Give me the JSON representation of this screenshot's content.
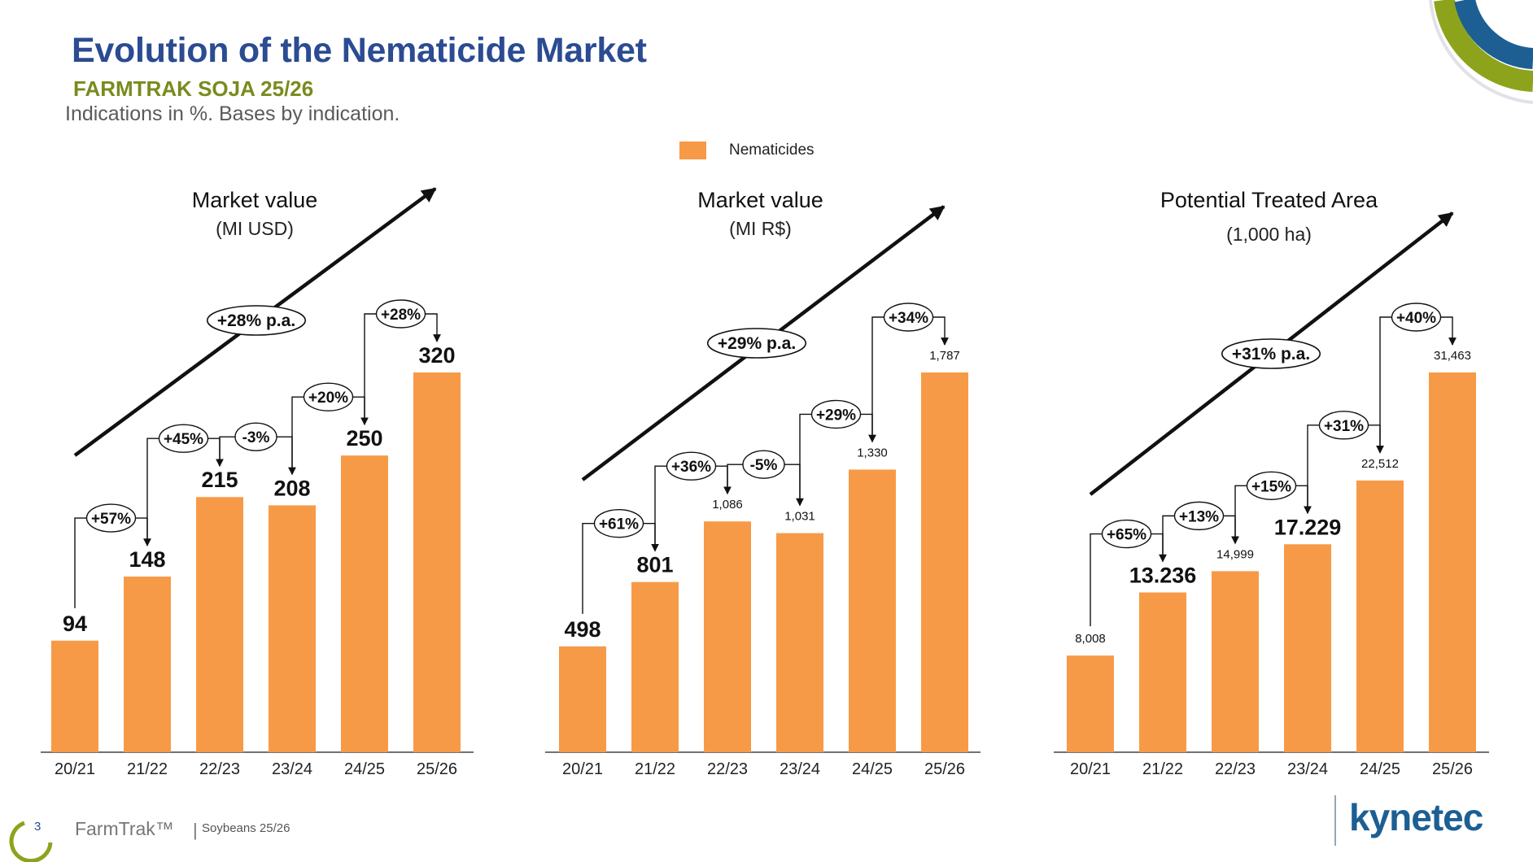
{
  "header": {
    "title": "Evolution of the Nematicide Market",
    "subtitle": "FARMTRAK SOJA 25/26",
    "note": "Indications in %. Bases by indication."
  },
  "legend": {
    "label": "Nematicides",
    "color": "#f79a48"
  },
  "footer": {
    "page_number": "3",
    "brand": "FarmTrak™",
    "separator": "|",
    "subtitle": "Soybeans 25/26",
    "logo": "kynetec"
  },
  "colors": {
    "bar": "#f79a48",
    "accent_green": "#8ea31c",
    "accent_blue": "#1d5f93",
    "title_blue": "#2b4b92"
  },
  "chart_data": [
    {
      "type": "bar",
      "title": "Market value",
      "subtitle": "(MI USD)",
      "categories": [
        "20/21",
        "21/22",
        "22/23",
        "23/24",
        "24/25",
        "25/26"
      ],
      "series": [
        {
          "name": "Nematicides",
          "values": [
            94,
            148,
            215,
            208,
            250,
            320
          ]
        }
      ],
      "value_labels": [
        "94",
        "148",
        "215",
        "208",
        "250",
        "320"
      ],
      "label_bold": [
        true,
        true,
        true,
        true,
        true,
        true
      ],
      "growth_labels": [
        "+57%",
        "+45%",
        "-3%",
        "+20%",
        "+28%"
      ],
      "cagr_label": "+28% p.a.",
      "ylim": [
        0,
        320
      ]
    },
    {
      "type": "bar",
      "title": "Market value",
      "subtitle": "(MI R$)",
      "categories": [
        "20/21",
        "21/22",
        "22/23",
        "23/24",
        "24/25",
        "25/26"
      ],
      "series": [
        {
          "name": "Nematicides",
          "values": [
            498,
            801,
            1086,
            1031,
            1330,
            1787
          ]
        }
      ],
      "value_labels": [
        "498",
        "801",
        "1,086",
        "1,031",
        "1,330",
        "1,787"
      ],
      "label_bold": [
        true,
        true,
        false,
        false,
        false,
        false
      ],
      "growth_labels": [
        "+61%",
        "+36%",
        "-5%",
        "+29%",
        "+34%"
      ],
      "cagr_label": "+29% p.a.",
      "ylim": [
        0,
        1787
      ]
    },
    {
      "type": "bar",
      "title": "Potential Treated Area",
      "subtitle": "(1,000 ha)",
      "categories": [
        "20/21",
        "21/22",
        "22/23",
        "23/24",
        "24/25",
        "25/26"
      ],
      "series": [
        {
          "name": "Nematicides",
          "values": [
            8008,
            13236,
            14999,
            17229,
            22512,
            31463
          ]
        }
      ],
      "value_labels": [
        "8,008",
        "13.236",
        "14,999",
        "17.229",
        "22,512",
        "31,463"
      ],
      "label_bold": [
        false,
        true,
        false,
        true,
        false,
        false
      ],
      "growth_labels": [
        "+65%",
        "+13%",
        "+15%",
        "+31%",
        "+40%"
      ],
      "cagr_label": "+31% p.a.",
      "ylim": [
        0,
        31463
      ]
    }
  ]
}
